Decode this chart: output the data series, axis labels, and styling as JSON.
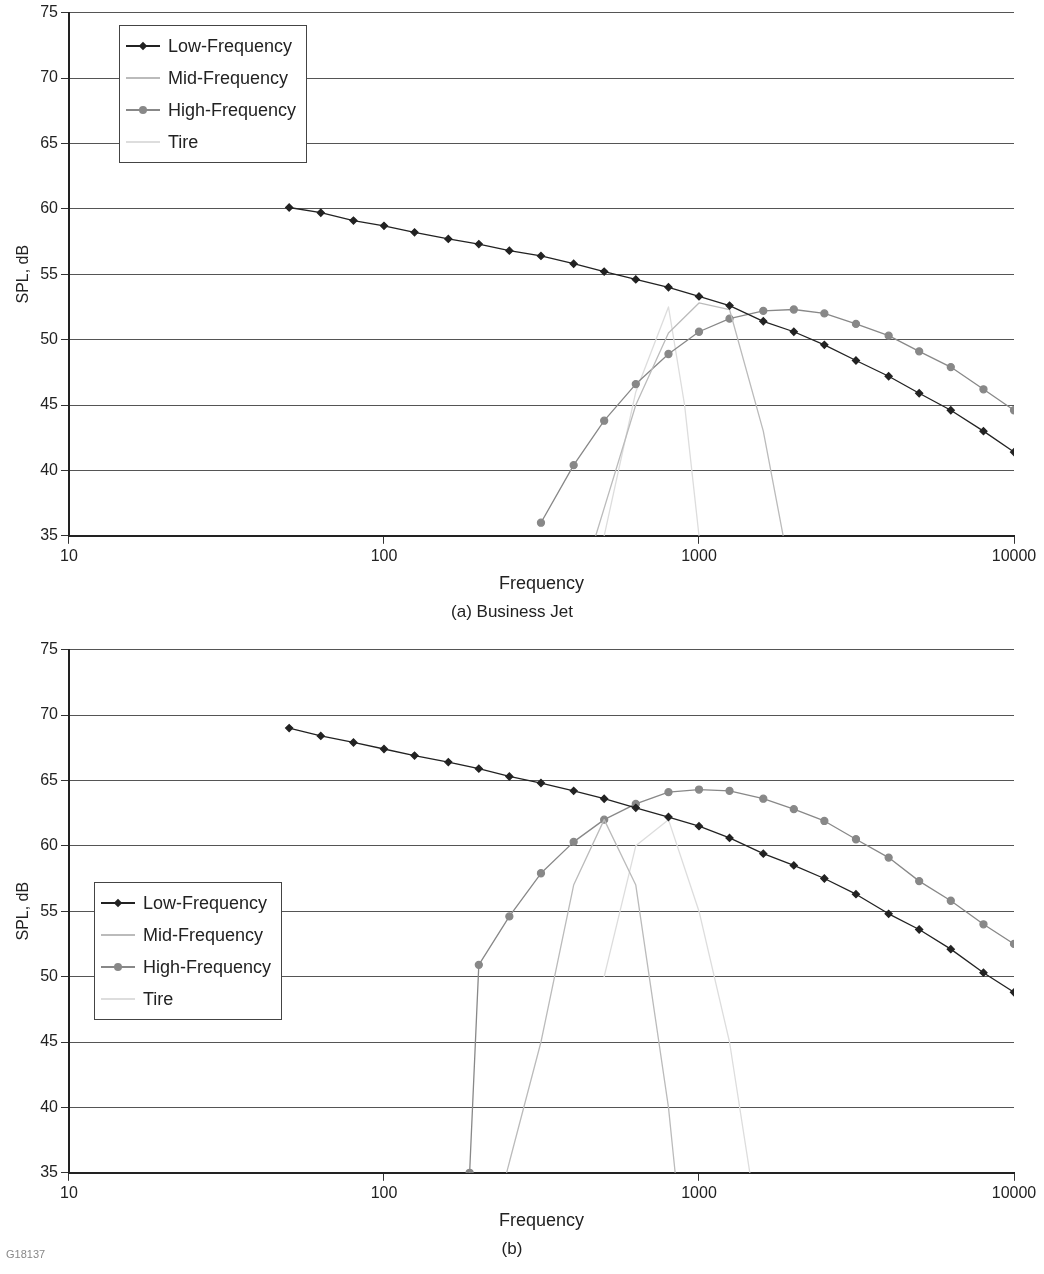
{
  "chart_data": [
    {
      "type": "line",
      "title": "(a) Business Jet",
      "xlabel": "Frequency",
      "ylabel": "SPL, dB",
      "log": "x",
      "xlim": [
        10,
        10000
      ],
      "xticks": [
        10,
        100,
        1000,
        10000
      ],
      "ylim": [
        35,
        75
      ],
      "yticks": [
        35,
        40,
        45,
        50,
        55,
        60,
        65,
        70,
        75
      ],
      "grid": "y",
      "legend": "top left",
      "line_style": "solid",
      "series": [
        {
          "name": "Low-Frequency",
          "color": "#222222",
          "marker": "diamond",
          "x": [
            50,
            63,
            80,
            100,
            125,
            160,
            200,
            250,
            315,
            400,
            500,
            630,
            800,
            1000,
            1250,
            1600,
            2000,
            2500,
            3150,
            4000,
            5000,
            6300,
            8000,
            10000
          ],
          "values": [
            60.1,
            59.7,
            59.1,
            58.7,
            58.2,
            57.7,
            57.3,
            56.8,
            56.4,
            55.8,
            55.2,
            54.6,
            54.0,
            53.3,
            52.6,
            51.4,
            50.6,
            49.6,
            48.4,
            47.2,
            45.9,
            44.6,
            43.0,
            41.4
          ]
        },
        {
          "name": "Mid-Frequency",
          "color": "#bbbbbb",
          "marker": "none",
          "x": [
            470,
            630,
            800,
            1000,
            1250,
            1600,
            1850
          ],
          "values": [
            35,
            45,
            50.5,
            52.8,
            52.3,
            43,
            35
          ]
        },
        {
          "name": "High-Frequency",
          "color": "#888888",
          "marker": "circle",
          "x": [
            315,
            400,
            500,
            630,
            800,
            1000,
            1250,
            1600,
            2000,
            2500,
            3150,
            4000,
            5000,
            6300,
            8000,
            10000
          ],
          "values": [
            36.0,
            40.4,
            43.8,
            46.6,
            48.9,
            50.6,
            51.6,
            52.2,
            52.3,
            52.0,
            51.2,
            50.3,
            49.1,
            47.9,
            46.2,
            44.6
          ]
        },
        {
          "name": "Tire",
          "color": "#dddddd",
          "marker": "none",
          "x": [
            500,
            630,
            800,
            900,
            1000
          ],
          "values": [
            35,
            46,
            52.5,
            45,
            35
          ]
        }
      ]
    },
    {
      "type": "line",
      "title": "(b)",
      "xlabel": "Frequency",
      "ylabel": "SPL, dB",
      "log": "x",
      "xlim": [
        10,
        10000
      ],
      "xticks": [
        10,
        100,
        1000,
        10000
      ],
      "ylim": [
        35,
        75
      ],
      "yticks": [
        35,
        40,
        45,
        50,
        55,
        60,
        65,
        70,
        75
      ],
      "grid": "y",
      "legend": "left",
      "line_style": "solid",
      "annotations": [
        "G18137"
      ],
      "series": [
        {
          "name": "Low-Frequency",
          "color": "#222222",
          "marker": "diamond",
          "x": [
            50,
            63,
            80,
            100,
            125,
            160,
            200,
            250,
            315,
            400,
            500,
            630,
            800,
            1000,
            1250,
            1600,
            2000,
            2500,
            3150,
            4000,
            5000,
            6300,
            8000,
            10000
          ],
          "values": [
            69.0,
            68.4,
            67.9,
            67.4,
            66.9,
            66.4,
            65.9,
            65.3,
            64.8,
            64.2,
            63.6,
            62.9,
            62.2,
            61.5,
            60.6,
            59.4,
            58.5,
            57.5,
            56.3,
            54.8,
            53.6,
            52.1,
            50.3,
            48.8
          ]
        },
        {
          "name": "Mid-Frequency",
          "color": "#bbbbbb",
          "marker": "none",
          "x": [
            245,
            315,
            400,
            500,
            630,
            800,
            840
          ],
          "values": [
            35,
            45,
            57,
            62,
            57,
            40,
            35
          ]
        },
        {
          "name": "High-Frequency",
          "color": "#888888",
          "marker": "circle",
          "x": [
            187,
            200,
            250,
            315,
            400,
            500,
            630,
            800,
            1000,
            1250,
            1600,
            2000,
            2500,
            3150,
            4000,
            5000,
            6300,
            8000,
            10000
          ],
          "values": [
            35,
            50.9,
            54.6,
            57.9,
            60.3,
            62.0,
            63.2,
            64.1,
            64.3,
            64.2,
            63.6,
            62.8,
            61.9,
            60.5,
            59.1,
            57.3,
            55.8,
            54.0,
            52.5
          ]
        },
        {
          "name": "Tire",
          "color": "#dddddd",
          "marker": "none",
          "x": [
            500,
            630,
            800,
            1000,
            1250,
            1450
          ],
          "values": [
            50,
            60,
            62,
            55,
            45,
            35
          ]
        }
      ]
    }
  ]
}
